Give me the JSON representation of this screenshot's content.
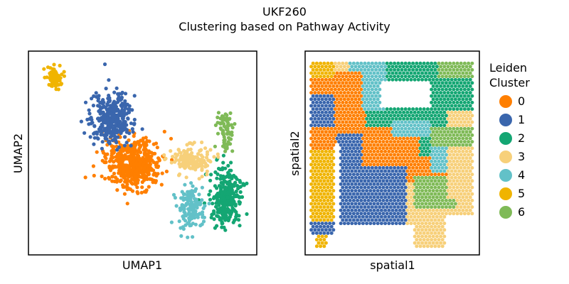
{
  "figure": {
    "title_line1": "UKF260",
    "title_line2": "Clustering based on Pathway Activity"
  },
  "chart_data": [
    {
      "type": "scatter",
      "panel": "umap",
      "xlabel": "UMAP1",
      "ylabel": "UMAP2",
      "ticks": "none",
      "grid": false,
      "clusters": [
        {
          "name": "0",
          "color": "#ff7f00",
          "centroid": [
            0.46,
            0.55
          ],
          "spread": [
            0.11,
            0.11
          ],
          "n": 520
        },
        {
          "name": "1",
          "color": "#3a66ad",
          "centroid": [
            0.36,
            0.33
          ],
          "spread": [
            0.08,
            0.12
          ],
          "n": 340
        },
        {
          "name": "2",
          "color": "#14a673",
          "centroid": [
            0.87,
            0.72
          ],
          "spread": [
            0.06,
            0.12
          ],
          "n": 300
        },
        {
          "name": "3",
          "color": "#f7d07a",
          "centroid": [
            0.71,
            0.53
          ],
          "spread": [
            0.08,
            0.06
          ],
          "n": 160
        },
        {
          "name": "4",
          "color": "#62c1c8",
          "centroid": [
            0.71,
            0.77
          ],
          "spread": [
            0.05,
            0.1
          ],
          "n": 140
        },
        {
          "name": "5",
          "color": "#f0b400",
          "centroid": [
            0.11,
            0.13
          ],
          "spread": [
            0.03,
            0.05
          ],
          "n": 70
        },
        {
          "name": "6",
          "color": "#7fba57",
          "centroid": [
            0.86,
            0.38
          ],
          "spread": [
            0.03,
            0.1
          ],
          "n": 70
        }
      ]
    },
    {
      "type": "scatter",
      "panel": "spatial",
      "xlabel": "spatial1",
      "ylabel": "spatial2",
      "ticks": "none",
      "grid": false,
      "clusters": [
        {
          "name": "0",
          "color": "#ff7f00"
        },
        {
          "name": "1",
          "color": "#3a66ad"
        },
        {
          "name": "2",
          "color": "#14a673"
        },
        {
          "name": "3",
          "color": "#f7d07a"
        },
        {
          "name": "4",
          "color": "#62c1c8"
        },
        {
          "name": "5",
          "color": "#f0b400"
        },
        {
          "name": "6",
          "color": "#7fba57"
        }
      ]
    }
  ],
  "legend": {
    "title_line1": "Leiden",
    "title_line2": "Cluster",
    "placement": "right",
    "items": [
      {
        "label": "0",
        "color": "#ff7f00"
      },
      {
        "label": "1",
        "color": "#3a66ad"
      },
      {
        "label": "2",
        "color": "#14a673"
      },
      {
        "label": "3",
        "color": "#f7d07a"
      },
      {
        "label": "4",
        "color": "#62c1c8"
      },
      {
        "label": "5",
        "color": "#f0b400"
      },
      {
        "label": "6",
        "color": "#7fba57"
      }
    ]
  }
}
